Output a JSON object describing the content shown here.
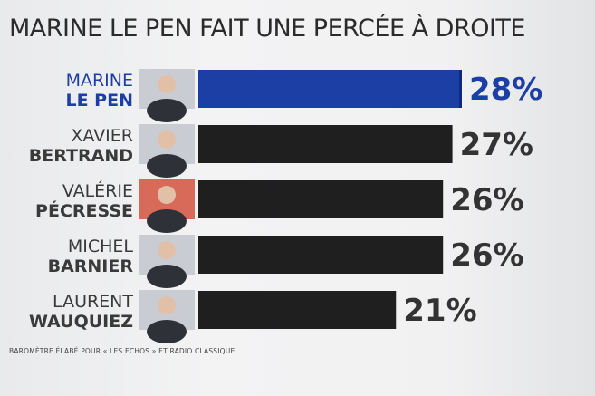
{
  "chart_data": {
    "type": "bar",
    "orientation": "horizontal",
    "title": "MARINE LE PEN FAIT UNE PERCÉE À DROITE",
    "categories": [
      {
        "first": "MARINE",
        "last": "LE PEN"
      },
      {
        "first": "XAVIER",
        "last": "BERTRAND"
      },
      {
        "first": "VALÉRIE",
        "last": "PÉCRESSE"
      },
      {
        "first": "MICHEL",
        "last": "BARNIER"
      },
      {
        "first": "LAURENT",
        "last": "WAUQUIEZ"
      }
    ],
    "values": [
      28,
      27,
      26,
      26,
      21
    ],
    "value_labels": [
      "28%",
      "27%",
      "26%",
      "26%",
      "21%"
    ],
    "highlight_index": 0,
    "colors": {
      "highlight": "#1c3fa6",
      "default": "#1f1f1f",
      "highlight_text": "#1c3fa6",
      "default_text": "#333333"
    },
    "xlim": [
      0,
      28
    ],
    "grid": false,
    "legend": "none"
  },
  "footer": {
    "source": "BAROMÈTRE ÉLABÉ POUR « LES ECHOS » ET RADIO CLASSIQUE"
  }
}
